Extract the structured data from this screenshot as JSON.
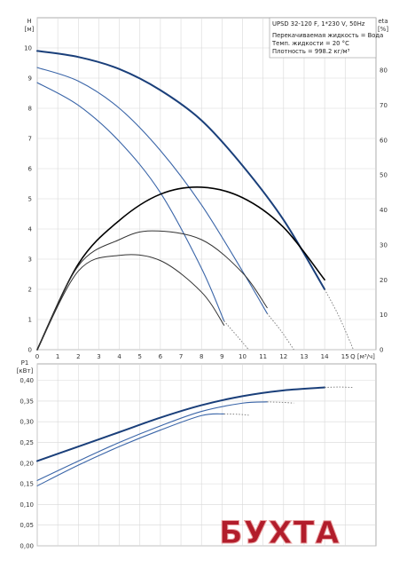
{
  "info": {
    "model": "UPSD 32-120 F, 1*230 V, 50Hz",
    "line1": "Перекачиваемая жидкость = Вода",
    "line2": "Темп. жидкости = 20 °C",
    "line3": "Плотность = 998.2 кг/м³"
  },
  "watermark": "БУХТА",
  "chart_data": [
    {
      "type": "line",
      "title": "",
      "xlabel": "Q [м³/ч]",
      "ylabel": "H [м]",
      "y2label": "eta [%]",
      "xlim": [
        0,
        16.5
      ],
      "ylim": [
        0,
        11
      ],
      "y2lim": [
        0,
        95
      ],
      "grid": true,
      "x_ticks": [
        0,
        1,
        2,
        3,
        4,
        5,
        6,
        7,
        8,
        9,
        10,
        11,
        12,
        13,
        14,
        15
      ],
      "y_ticks": [
        0,
        1,
        2,
        3,
        4,
        5,
        6,
        7,
        8,
        9,
        10
      ],
      "y2_ticks": [
        0,
        10,
        20,
        30,
        40,
        50,
        60,
        70,
        80
      ],
      "series": [
        {
          "kind": "head",
          "color": "#1a3f7a",
          "width": 2,
          "x": [
            0,
            2,
            4,
            6,
            8,
            10,
            12,
            14
          ],
          "values": [
            9.9,
            9.7,
            9.3,
            8.6,
            7.6,
            6.1,
            4.3,
            2.0
          ],
          "ext_x": [
            14,
            14.7,
            15.4
          ],
          "ext_values": [
            2.0,
            1.1,
            0.0
          ]
        },
        {
          "kind": "head",
          "color": "#3a65a8",
          "width": 1.1,
          "x": [
            0,
            2,
            4,
            6,
            8,
            10,
            11.2
          ],
          "values": [
            9.35,
            8.9,
            8.0,
            6.6,
            4.8,
            2.6,
            1.2
          ],
          "ext_x": [
            11.2,
            11.9,
            12.5
          ],
          "ext_values": [
            1.2,
            0.6,
            0.0
          ]
        },
        {
          "kind": "head",
          "color": "#3a65a8",
          "width": 1.1,
          "x": [
            0,
            2,
            4,
            6,
            8,
            9.1
          ],
          "values": [
            8.85,
            8.1,
            6.9,
            5.2,
            2.7,
            0.95
          ],
          "ext_x": [
            9.1,
            9.8,
            10.3
          ],
          "ext_values": [
            0.95,
            0.4,
            0.0
          ]
        },
        {
          "kind": "eta",
          "color": "#000000",
          "width": 1.6,
          "x": [
            0,
            2,
            4,
            6,
            8,
            10,
            12,
            14
          ],
          "values": [
            0,
            24.5,
            37.0,
            44.5,
            46.5,
            43.5,
            35.0,
            20.0
          ]
        },
        {
          "kind": "eta",
          "color": "#333333",
          "width": 1.0,
          "x": [
            0,
            2,
            4,
            5.6,
            8,
            10,
            11.2
          ],
          "values": [
            0,
            24.0,
            31.5,
            34.0,
            31.5,
            22.0,
            12.0
          ]
        },
        {
          "kind": "eta",
          "color": "#333333",
          "width": 1.0,
          "x": [
            0,
            2,
            4,
            6,
            8,
            9.1
          ],
          "values": [
            0,
            22.5,
            27.0,
            25.5,
            16.5,
            7.0
          ]
        }
      ]
    },
    {
      "type": "line",
      "title": "",
      "xlabel": "",
      "ylabel": "P1 [кВт]",
      "xlim": [
        0,
        16.5
      ],
      "ylim": [
        0,
        0.44
      ],
      "grid": true,
      "y_ticks": [
        0.0,
        0.05,
        0.1,
        0.15,
        0.2,
        0.25,
        0.3,
        0.35,
        0.4
      ],
      "y_tick_labels": [
        "0,00",
        "0,05",
        "0,10",
        "0,15",
        "0,20",
        "0,25",
        "0,30",
        "0,35",
        "0,40"
      ],
      "series": [
        {
          "kind": "power",
          "color": "#1a3f7a",
          "width": 2,
          "x": [
            0,
            2,
            4,
            6,
            8,
            10,
            12,
            14
          ],
          "values": [
            0.205,
            0.24,
            0.275,
            0.31,
            0.34,
            0.362,
            0.376,
            0.383
          ],
          "ext_x": [
            14,
            14.7,
            15.4
          ],
          "ext_values": [
            0.383,
            0.384,
            0.383
          ]
        },
        {
          "kind": "power",
          "color": "#3a65a8",
          "width": 1.1,
          "x": [
            0,
            2,
            4,
            6,
            8,
            10,
            11.2
          ],
          "values": [
            0.158,
            0.205,
            0.25,
            0.29,
            0.325,
            0.345,
            0.348
          ],
          "ext_x": [
            11.2,
            11.9,
            12.5
          ],
          "ext_values": [
            0.348,
            0.347,
            0.345
          ]
        },
        {
          "kind": "power",
          "color": "#3a65a8",
          "width": 1.1,
          "x": [
            0,
            2,
            4,
            6,
            8,
            9.1
          ],
          "values": [
            0.145,
            0.195,
            0.24,
            0.28,
            0.315,
            0.319
          ],
          "ext_x": [
            9.1,
            9.8,
            10.3
          ],
          "ext_values": [
            0.319,
            0.318,
            0.316
          ]
        }
      ]
    }
  ]
}
